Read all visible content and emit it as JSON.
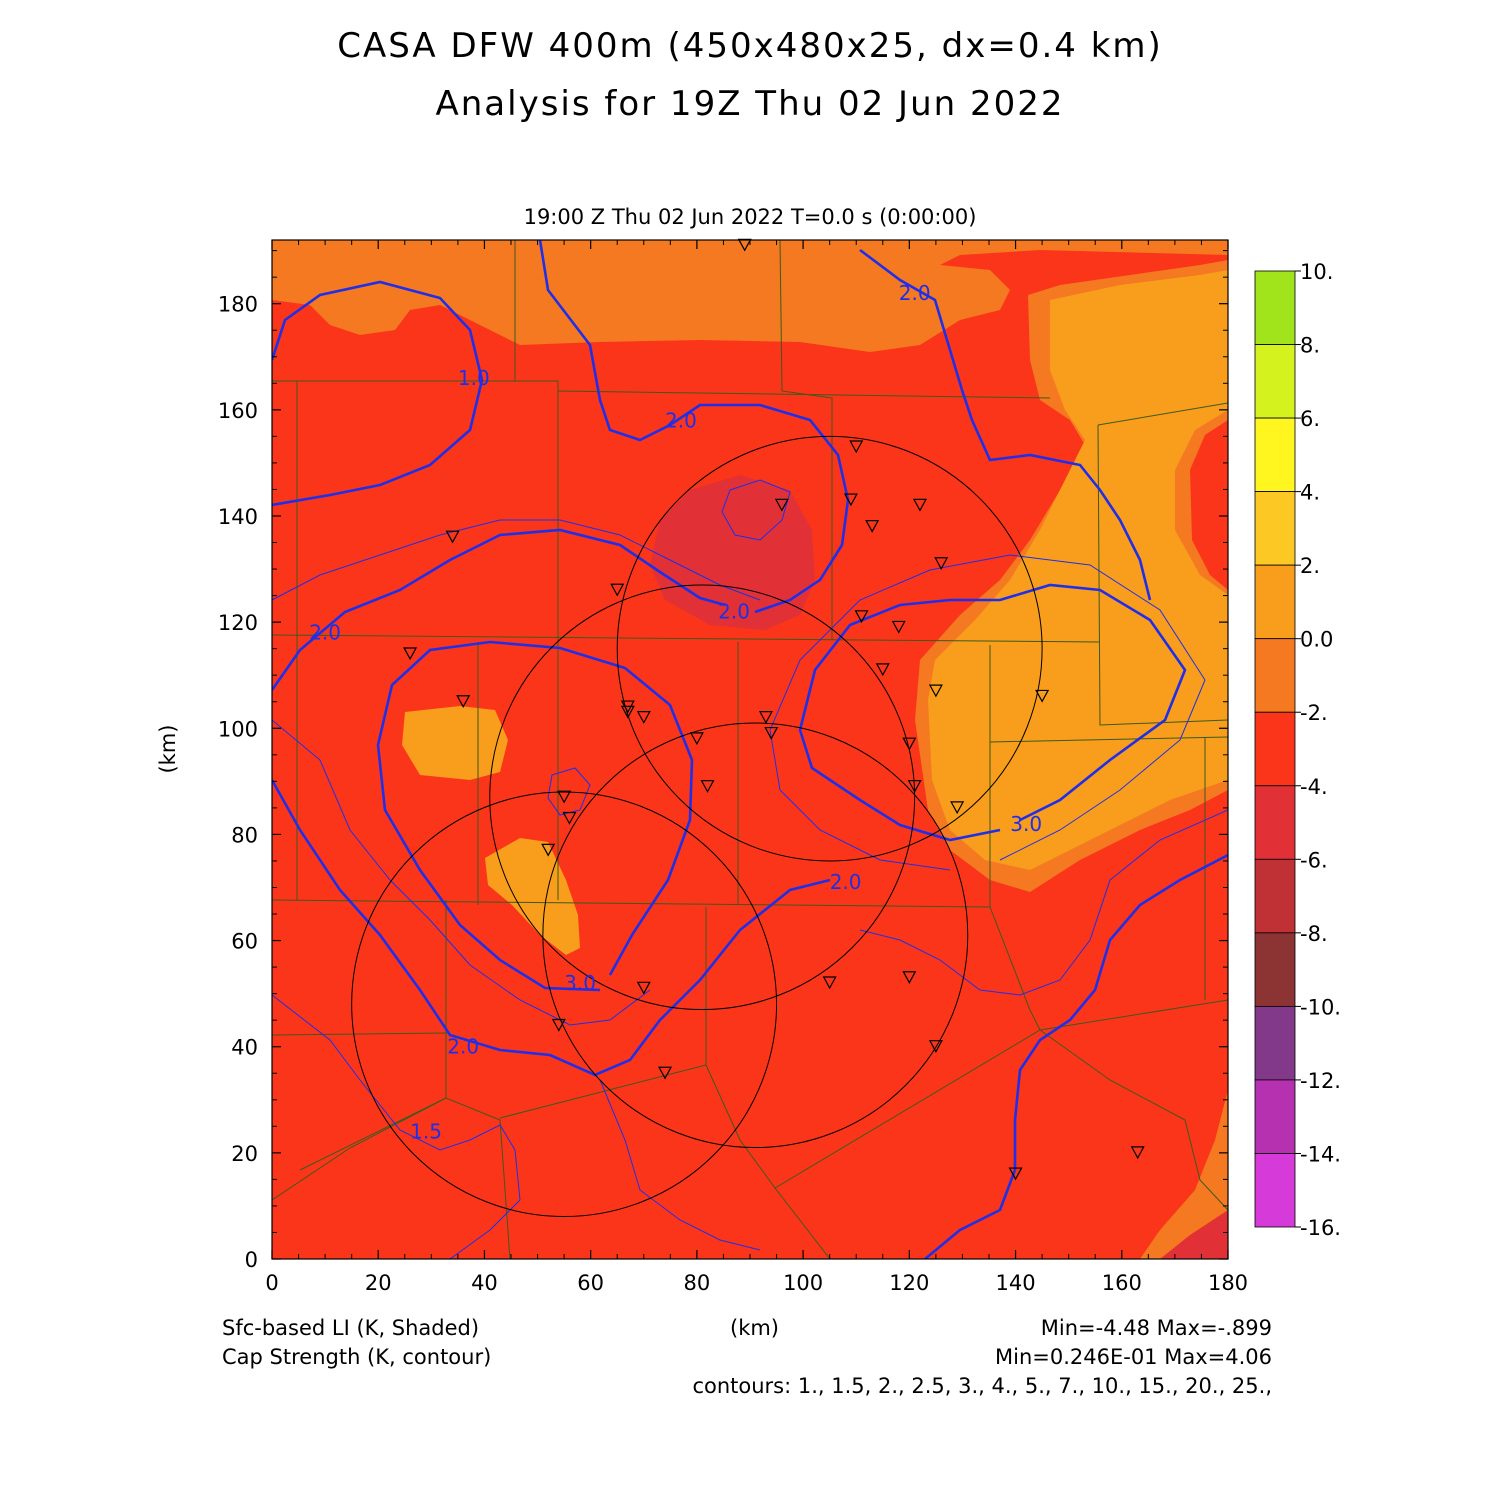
{
  "title": {
    "line1": "CASA DFW 400m (450x480x25, dx=0.4 km)",
    "line2": "Analysis for 19Z Thu 02 Jun 2022"
  },
  "plot_time": "19:00 Z Thu 02 Jun 2022    T=0.0 s (0:00:00)",
  "axes": {
    "x_label": "(km)",
    "y_label": "(km)",
    "x_range": [
      0,
      180
    ],
    "y_range": [
      0,
      192
    ],
    "x_ticks": [
      "0",
      "20",
      "40",
      "60",
      "80",
      "100",
      "120",
      "140",
      "160",
      "180"
    ],
    "y_ticks": [
      "0",
      "20",
      "40",
      "60",
      "80",
      "100",
      "120",
      "140",
      "160",
      "180"
    ]
  },
  "colorbar": {
    "labels": [
      "10.",
      "8.",
      "6.",
      "4.",
      "2.",
      "0.0",
      "-2.",
      "-4.",
      "-6.",
      "-8.",
      "-10.",
      "-12.",
      "-14.",
      "-16."
    ],
    "colors": [
      "#a2e41c",
      "#d4f21e",
      "#fff620",
      "#fcc824",
      "#f99d1c",
      "#f57921",
      "#fb3519",
      "#e13136",
      "#c03136",
      "#8c3334",
      "#833989",
      "#b631b0",
      "#d63bd9"
    ]
  },
  "shading": {
    "field": "Sfc-based LI",
    "colors": {
      "base": "#fb3519",
      "band_minus2_0": "#f57921",
      "band_0_2": "#f99d1c",
      "band_minus6_minus4": "#e13136"
    }
  },
  "contour_labels": [
    {
      "text": "1.0",
      "x": 38,
      "y": 166
    },
    {
      "text": "2.0",
      "x": 77,
      "y": 158
    },
    {
      "text": "2.0",
      "x": 121,
      "y": 182
    },
    {
      "text": "2.0",
      "x": 10,
      "y": 118
    },
    {
      "text": "2.0",
      "x": 87,
      "y": 122
    },
    {
      "text": "3.0",
      "x": 142,
      "y": 82
    },
    {
      "text": "2.0",
      "x": 108,
      "y": 71
    },
    {
      "text": "3.0",
      "x": 58,
      "y": 52
    },
    {
      "text": "2.0",
      "x": 36,
      "y": 40
    },
    {
      "text": "1.5",
      "x": 29,
      "y": 24
    }
  ],
  "radars": [
    {
      "x": 105,
      "y": 115,
      "r": 40
    },
    {
      "x": 81,
      "y": 87,
      "r": 40
    },
    {
      "x": 91,
      "y": 61,
      "r": 40
    },
    {
      "x": 55,
      "y": 48,
      "r": 40
    }
  ],
  "stations": [
    [
      89,
      191
    ],
    [
      110,
      153
    ],
    [
      96,
      142
    ],
    [
      109,
      143
    ],
    [
      122,
      142
    ],
    [
      113,
      138
    ],
    [
      34,
      136
    ],
    [
      126,
      131
    ],
    [
      65,
      126
    ],
    [
      111,
      121
    ],
    [
      118,
      119
    ],
    [
      26,
      114
    ],
    [
      115,
      111
    ],
    [
      125,
      107
    ],
    [
      145,
      106
    ],
    [
      36,
      105
    ],
    [
      67,
      104
    ],
    [
      67,
      103
    ],
    [
      70,
      102
    ],
    [
      93,
      102
    ],
    [
      94,
      99
    ],
    [
      80,
      98
    ],
    [
      120,
      97
    ],
    [
      82,
      89
    ],
    [
      121,
      89
    ],
    [
      55,
      87
    ],
    [
      129,
      85
    ],
    [
      56,
      83
    ],
    [
      52,
      77
    ],
    [
      70,
      51
    ],
    [
      105,
      52
    ],
    [
      120,
      53
    ],
    [
      54,
      44
    ],
    [
      125,
      40
    ],
    [
      74,
      35
    ],
    [
      163,
      20
    ],
    [
      140,
      16
    ]
  ],
  "footer": {
    "li_label": "Sfc-based LI (K, Shaded)",
    "cap_label": "Cap Strength (K, contour)",
    "x_label": "(km)",
    "li_minmax": "Min=-4.48 Max=-.899",
    "cap_minmax": "Min=0.246E-01 Max=4.06",
    "contours": "contours: 1., 1.5, 2., 2.5, 3., 4., 5., 7., 10., 15., 20., 25.,"
  },
  "line_colors": {
    "contour": "#1f2fe8",
    "county": "#3c5a1e",
    "radar": "#000000"
  }
}
